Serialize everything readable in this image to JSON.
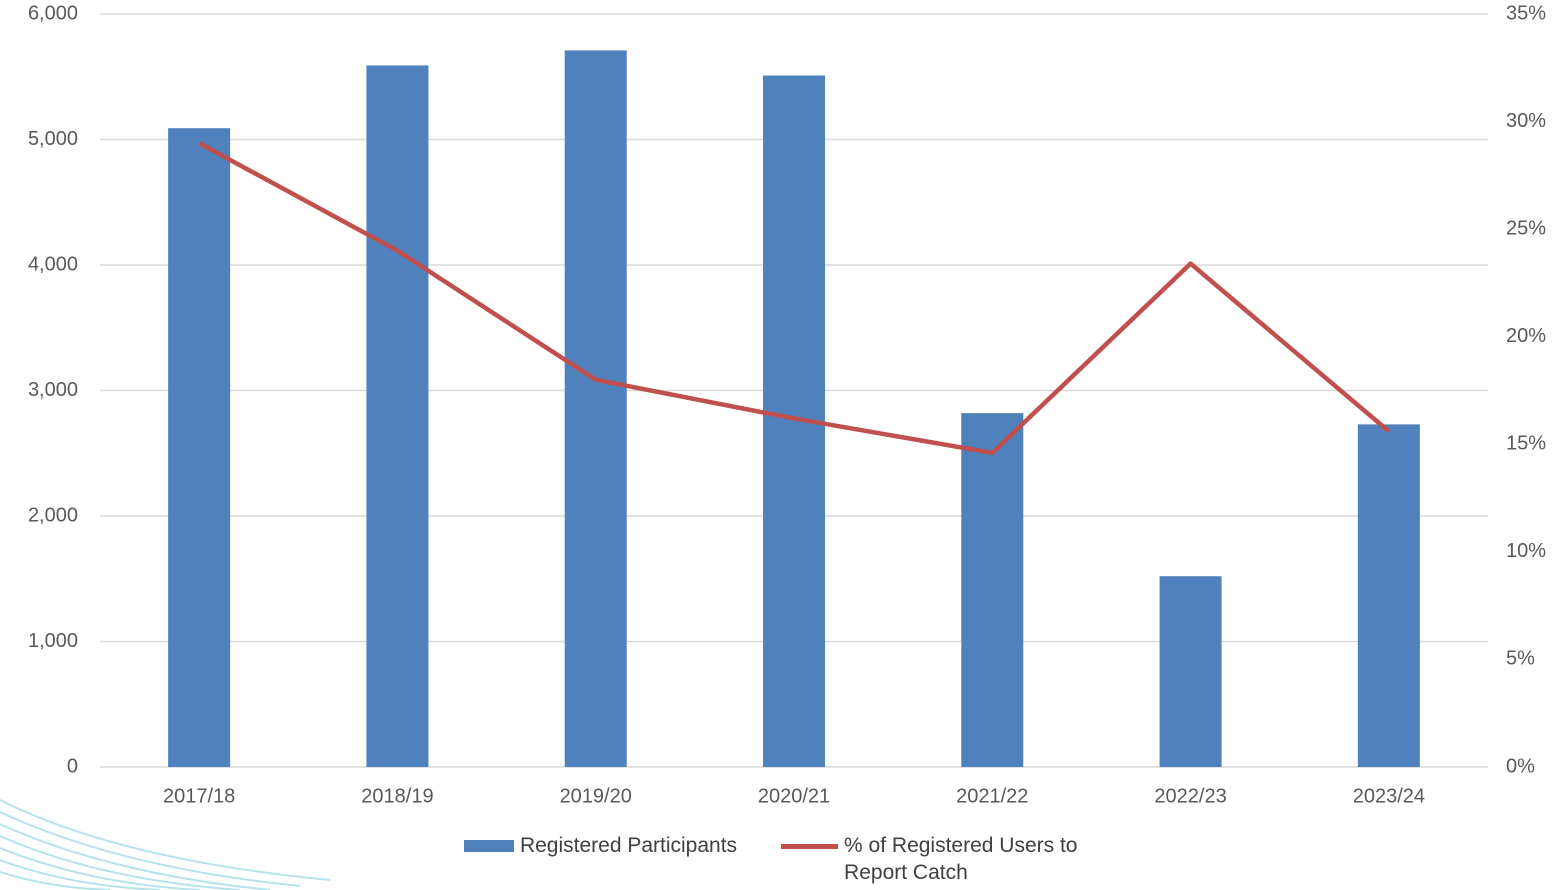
{
  "chart_data": {
    "type": "bar",
    "categories": [
      "2017/18",
      "2018/19",
      "2019/20",
      "2020/21",
      "2021/22",
      "2022/23",
      "2023/24"
    ],
    "series": [
      {
        "name": "Registered Participants",
        "type": "bar",
        "color": "#4f81bd",
        "values": [
          5090,
          5590,
          5710,
          5510,
          2820,
          1520,
          2730
        ]
      },
      {
        "name": "% of Registered Users to Report Catch",
        "type": "line",
        "axis": "y2",
        "color": "#c0504d",
        "values": [
          29.0,
          24.0,
          18.0,
          16.2,
          14.6,
          23.4,
          15.6
        ]
      }
    ],
    "ylim": [
      0,
      6000
    ],
    "yticks": [
      0,
      {
        "value": 1000,
        "label": "1,000"
      },
      {
        "value": 2000,
        "label": "2,000"
      },
      {
        "value": 3000,
        "label": "3,000"
      },
      {
        "value": 4000,
        "label": "4,000"
      },
      {
        "value": 5000,
        "label": "5,000"
      },
      {
        "value": 6000,
        "label": "6,000"
      }
    ],
    "y2lim": [
      0,
      35
    ],
    "y2ticks": [
      {
        "value": 0,
        "label": "0%"
      },
      {
        "value": 5,
        "label": "5%"
      },
      {
        "value": 10,
        "label": "10%"
      },
      {
        "value": 15,
        "label": "15%"
      },
      {
        "value": 20,
        "label": "20%"
      },
      {
        "value": 25,
        "label": "25%"
      },
      {
        "value": 30,
        "label": "30%"
      },
      {
        "value": 35,
        "label": "35%"
      }
    ],
    "grid": true,
    "legend": "bottom"
  }
}
